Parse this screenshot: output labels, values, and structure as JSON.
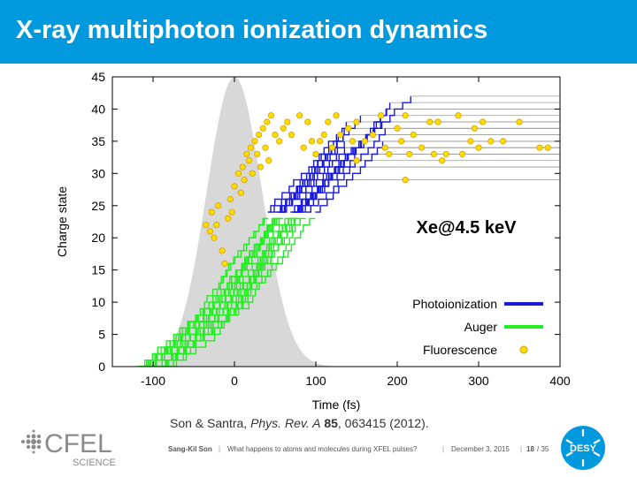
{
  "slide": {
    "title": "X-ray multiphoton ionization dynamics",
    "citation": {
      "authors": "Son & Santra, ",
      "journal": "Phys. Rev. A",
      "volume": "85",
      "rest": ", 063415 (2012)."
    }
  },
  "footer": {
    "author": "Sang-Kil Son",
    "talk": "What happens to atoms and molecules during XFEL pulses?",
    "date": "December 3, 2015",
    "page": "18",
    "total": "/ 35",
    "sep": "|"
  },
  "logos": {
    "cfel": "CFEL",
    "cfel_sub": "SCIENCE",
    "desy": "DESY"
  },
  "colors": {
    "header": "#0099dd",
    "photoionization": "#1a1adc",
    "auger": "#22ee22",
    "fluorescence": "#ffdd00",
    "pulse": "#d8d8d8"
  },
  "chart_data": {
    "type": "line",
    "xlabel": "Time (fs)",
    "ylabel": "Charge state",
    "xlim": [
      -150,
      400
    ],
    "ylim": [
      0,
      45
    ],
    "xticks": [
      -100,
      0,
      100,
      200,
      300,
      400
    ],
    "yticks": [
      0,
      5,
      10,
      15,
      20,
      25,
      30,
      35,
      40,
      45
    ],
    "annotation": "Xe@4.5 keV",
    "legend": [
      {
        "name": "Photoionization",
        "style": "line",
        "color": "#1a1adc"
      },
      {
        "name": "Auger",
        "style": "line",
        "color": "#22ee22"
      },
      {
        "name": "Fluorescence",
        "style": "point",
        "color": "#ffdd00"
      }
    ],
    "legend_position": "bottom-right",
    "pulse": {
      "center": 0,
      "fwhm": 80,
      "peak": 45
    },
    "final_charges": [
      29,
      31,
      32,
      33,
      33,
      34,
      34,
      35,
      35,
      35,
      36,
      36,
      37,
      37,
      38,
      38,
      39,
      40,
      41,
      42
    ],
    "fluorescence_points": [
      [
        -35,
        22
      ],
      [
        -30,
        21
      ],
      [
        -28,
        24
      ],
      [
        -25,
        20
      ],
      [
        -22,
        22
      ],
      [
        -20,
        25
      ],
      [
        -15,
        18
      ],
      [
        -12,
        16
      ],
      [
        -8,
        23
      ],
      [
        -5,
        26
      ],
      [
        -3,
        24
      ],
      [
        0,
        28
      ],
      [
        5,
        30
      ],
      [
        8,
        27
      ],
      [
        10,
        31
      ],
      [
        12,
        29
      ],
      [
        15,
        33
      ],
      [
        18,
        32
      ],
      [
        20,
        34
      ],
      [
        22,
        30
      ],
      [
        25,
        35
      ],
      [
        28,
        33
      ],
      [
        30,
        36
      ],
      [
        32,
        31
      ],
      [
        35,
        37
      ],
      [
        38,
        34
      ],
      [
        40,
        38
      ],
      [
        42,
        32
      ],
      [
        45,
        39
      ],
      [
        50,
        36
      ],
      [
        55,
        35
      ],
      [
        60,
        37
      ],
      [
        65,
        38
      ],
      [
        70,
        36
      ],
      [
        80,
        39
      ],
      [
        85,
        34
      ],
      [
        90,
        38
      ],
      [
        95,
        35
      ],
      [
        100,
        33
      ],
      [
        105,
        35
      ],
      [
        110,
        36
      ],
      [
        115,
        38
      ],
      [
        120,
        34
      ],
      [
        125,
        39
      ],
      [
        130,
        36
      ],
      [
        140,
        37
      ],
      [
        145,
        35
      ],
      [
        150,
        32
      ],
      [
        150,
        38
      ],
      [
        160,
        35
      ],
      [
        170,
        36
      ],
      [
        180,
        39
      ],
      [
        185,
        34
      ],
      [
        190,
        33
      ],
      [
        200,
        37
      ],
      [
        205,
        35
      ],
      [
        210,
        29
      ],
      [
        210,
        39
      ],
      [
        215,
        33
      ],
      [
        220,
        36
      ],
      [
        230,
        34
      ],
      [
        240,
        38
      ],
      [
        245,
        33
      ],
      [
        250,
        38
      ],
      [
        255,
        32
      ],
      [
        260,
        33
      ],
      [
        275,
        39
      ],
      [
        280,
        33
      ],
      [
        290,
        35
      ],
      [
        295,
        37
      ],
      [
        300,
        34
      ],
      [
        305,
        38
      ],
      [
        315,
        35
      ],
      [
        330,
        35
      ],
      [
        350,
        38
      ],
      [
        375,
        34
      ],
      [
        385,
        34
      ]
    ]
  }
}
